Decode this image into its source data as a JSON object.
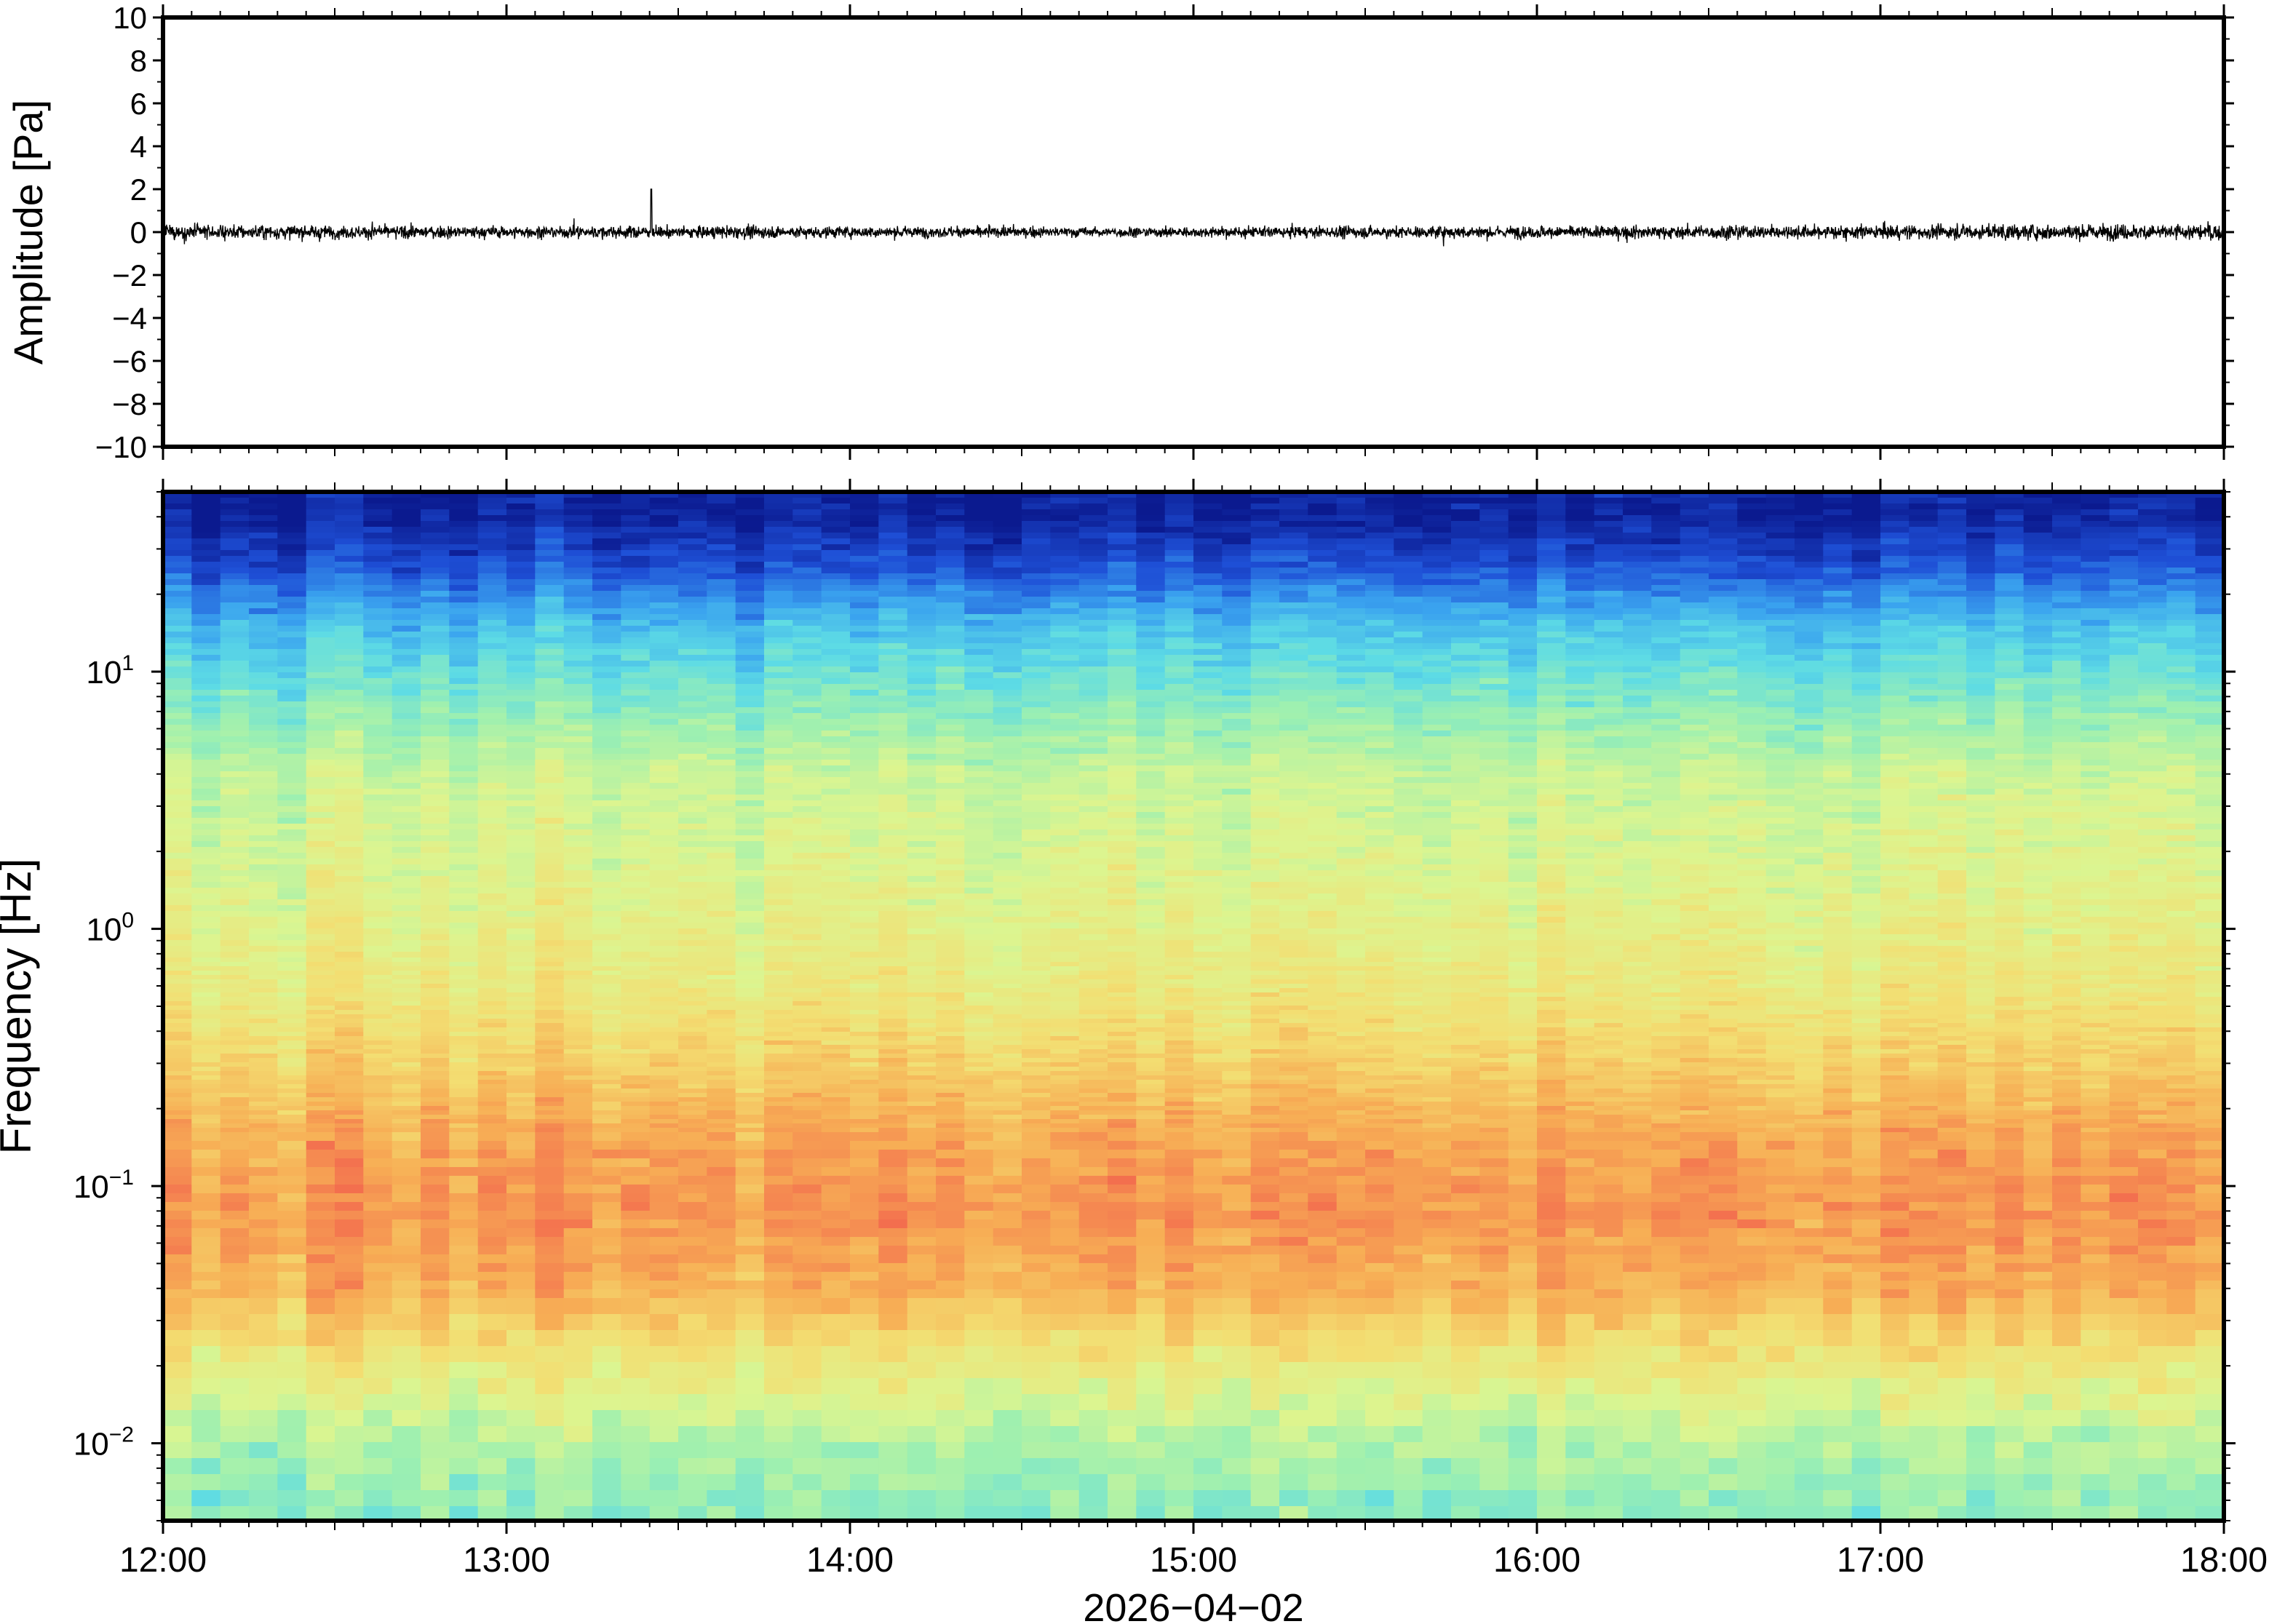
{
  "chart_data": [
    {
      "type": "line",
      "panel": "waveform",
      "ylabel": "Amplitude [Pa]",
      "ylim": [
        -10,
        10
      ],
      "yticks": [
        -10,
        -8,
        -6,
        -4,
        -2,
        0,
        2,
        4,
        6,
        8,
        10
      ],
      "ytick_labels": [
        "−10",
        "−8",
        "−6",
        "−4",
        "−2",
        "0",
        "2",
        "4",
        "6",
        "8",
        "10"
      ],
      "xlim": [
        "12:00",
        "18:00"
      ],
      "series": [
        {
          "color": "#000000",
          "noise_amplitude_pa": 0.55,
          "peak_amplitude_pa": 2.0,
          "envelope": [
            {
              "t": 0.0,
              "amp": 0.95
            },
            {
              "t": 0.1,
              "amp": 0.75
            },
            {
              "t": 0.2,
              "amp": 0.7
            },
            {
              "t": 0.3,
              "amp": 0.72
            },
            {
              "t": 0.4,
              "amp": 0.6
            },
            {
              "t": 0.5,
              "amp": 0.6
            },
            {
              "t": 0.6,
              "amp": 0.7
            },
            {
              "t": 0.7,
              "amp": 0.75
            },
            {
              "t": 0.8,
              "amp": 0.8
            },
            {
              "t": 0.9,
              "amp": 0.9
            },
            {
              "t": 1.0,
              "amp": 0.95
            }
          ]
        }
      ]
    },
    {
      "type": "heatmap",
      "panel": "spectrogram",
      "ylabel": "Frequency [Hz]",
      "yscale": "log",
      "ylim": [
        0.005,
        50
      ],
      "yticks": [
        {
          "base": "10",
          "exp": "−2",
          "value": 0.01
        },
        {
          "base": "10",
          "exp": "−1",
          "value": 0.1
        },
        {
          "base": "10",
          "exp": "0",
          "value": 1
        },
        {
          "base": "10",
          "exp": "1",
          "value": 10
        }
      ],
      "xlabel": "2026−04−02",
      "xticks": [
        "12:00",
        "13:00",
        "14:00",
        "15:00",
        "16:00",
        "17:00",
        "18:00"
      ],
      "colormap": [
        "#0b1a8f",
        "#1e4fd6",
        "#3aa3ef",
        "#5ddbe5",
        "#9ef0b0",
        "#dcf590",
        "#f3de72",
        "#f7ae55",
        "#f36b4e",
        "#ef9aa0"
      ],
      "profile": [
        {
          "freq": 40,
          "level": 0.02
        },
        {
          "freq": 25,
          "level": 0.12
        },
        {
          "freq": 15,
          "level": 0.28
        },
        {
          "freq": 8,
          "level": 0.4
        },
        {
          "freq": 4,
          "level": 0.52
        },
        {
          "freq": 1.5,
          "level": 0.57
        },
        {
          "freq": 0.6,
          "level": 0.62
        },
        {
          "freq": 0.3,
          "level": 0.7
        },
        {
          "freq": 0.15,
          "level": 0.79
        },
        {
          "freq": 0.08,
          "level": 0.82
        },
        {
          "freq": 0.04,
          "level": 0.77
        },
        {
          "freq": 0.02,
          "level": 0.62
        },
        {
          "freq": 0.01,
          "level": 0.48
        },
        {
          "freq": 0.006,
          "level": 0.43
        }
      ]
    }
  ]
}
